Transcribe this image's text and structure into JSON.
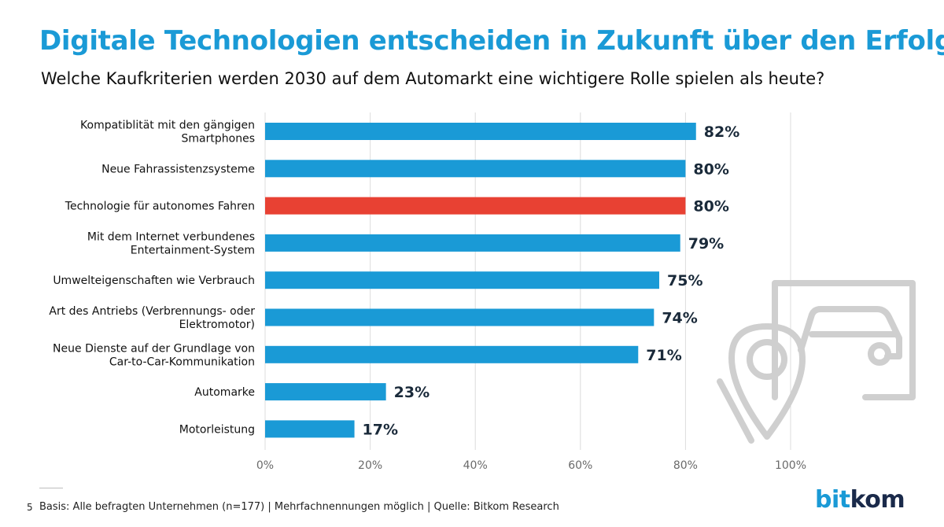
{
  "header": {
    "title": "Digitale Technologien entscheiden in Zukunft über den Erfolg",
    "subtitle": "Welche Kaufkriterien werden 2030 auf dem Automarkt eine wichtigere Rolle spielen als heute?"
  },
  "footer": {
    "page_number": "5",
    "note": "Basis: Alle befragten Unternehmen (n=177) | Mehrfachnennungen möglich | Quelle: Bitkom Research",
    "logo_part1": "bit",
    "logo_part2": "kom"
  },
  "colors": {
    "bar_default": "#1a9ad6",
    "bar_highlight": "#e84133",
    "title": "#1a9ad6",
    "grid": "#dcdcdc"
  },
  "decoration": {
    "icon": "car-location-pin-icon"
  },
  "chart_data": {
    "type": "bar",
    "orientation": "horizontal",
    "categories": [
      [
        "Kompatiblität mit den gängigen",
        "Smartphones"
      ],
      [
        "Neue Fahrassistenzsysteme"
      ],
      [
        "Technologie für autonomes Fahren"
      ],
      [
        "Mit dem Internet verbundenes",
        "Entertainment-System"
      ],
      [
        "Umwelteigenschaften wie Verbrauch"
      ],
      [
        "Art des Antriebs (Verbrennungs- oder",
        "Elektromotor)"
      ],
      [
        "Neue Dienste auf der Grundlage von",
        "Car-to-Car-Kommunikation"
      ],
      [
        "Automarke"
      ],
      [
        "Motorleistung"
      ]
    ],
    "values": [
      82,
      80,
      80,
      79,
      75,
      74,
      71,
      23,
      17
    ],
    "value_labels": [
      "82%",
      "80%",
      "80%",
      "79%",
      "75%",
      "74%",
      "71%",
      "23%",
      "17%"
    ],
    "highlight_index": 2,
    "xlim": [
      0,
      100
    ],
    "xticks": [
      0,
      20,
      40,
      60,
      80,
      100
    ],
    "xtick_labels": [
      "0%",
      "20%",
      "40%",
      "60%",
      "80%",
      "100%"
    ],
    "grid": true
  }
}
